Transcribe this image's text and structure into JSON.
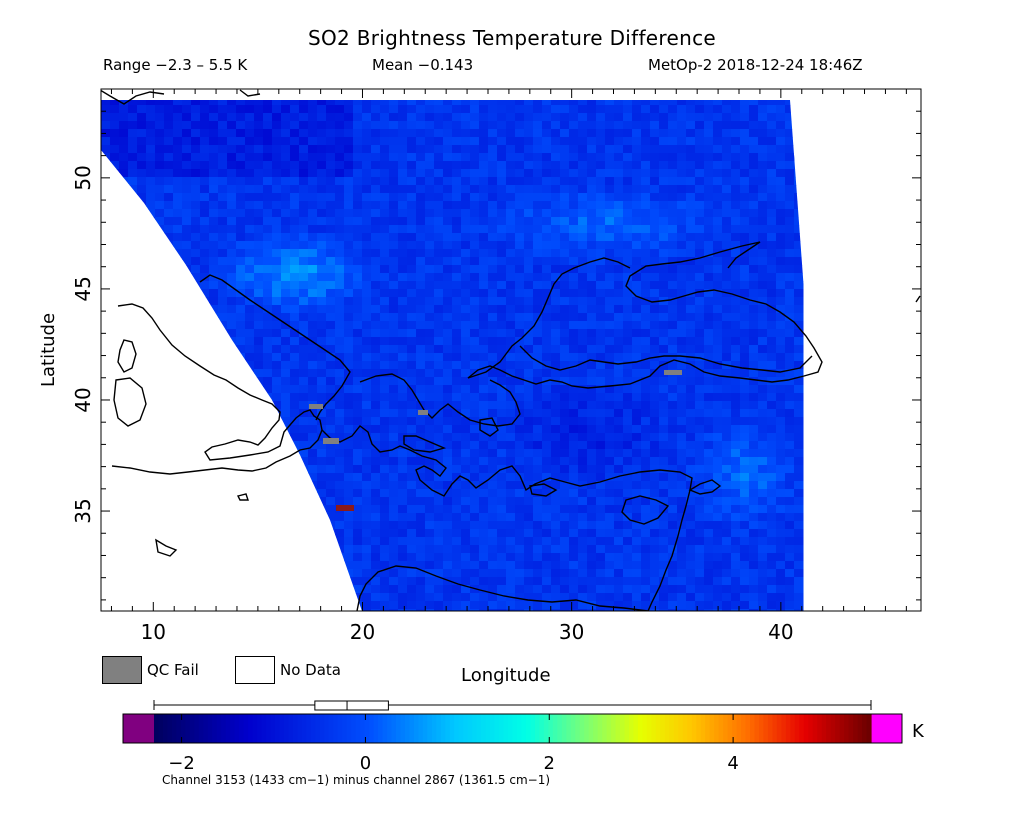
{
  "header": {
    "title": "SO2 Brightness Temperature Difference",
    "range": "Range −2.3 – 5.5 K",
    "mean": "Mean −0.143",
    "satellite_time": "MetOp-2 2018-12-24 18:46Z"
  },
  "legend": {
    "qc_fail_label": "QC Fail",
    "no_data_label": "No Data",
    "qc_fail_color": "#808080",
    "no_data_color": "#ffffff"
  },
  "chart_data": {
    "type": "heatmap",
    "title": "SO2 Brightness Temperature Difference",
    "xlabel": "Longitude",
    "ylabel": "Latitude",
    "xlim": [
      7.5,
      46.7
    ],
    "ylim": [
      30.5,
      54.0
    ],
    "xticks": [
      10,
      20,
      30,
      40
    ],
    "yticks": [
      35,
      40,
      45,
      50
    ],
    "grid": false,
    "range_min": -2.3,
    "range_max": 5.5,
    "mean": -0.143,
    "units": "K",
    "colorbar": {
      "min": -2.7,
      "max": 5.8,
      "ticks": [
        -2,
        0,
        2,
        4
      ],
      "unit": "K",
      "below_color": "#800080",
      "above_color": "#ff00ff",
      "whisker": {
        "min": -2.3,
        "q1": -0.55,
        "median": -0.2,
        "q3": 0.25,
        "max": 5.5
      }
    },
    "channel_note": "Channel 3153 (1433 cm−1) minus channel 2867 (1361.5 cm−1)"
  }
}
